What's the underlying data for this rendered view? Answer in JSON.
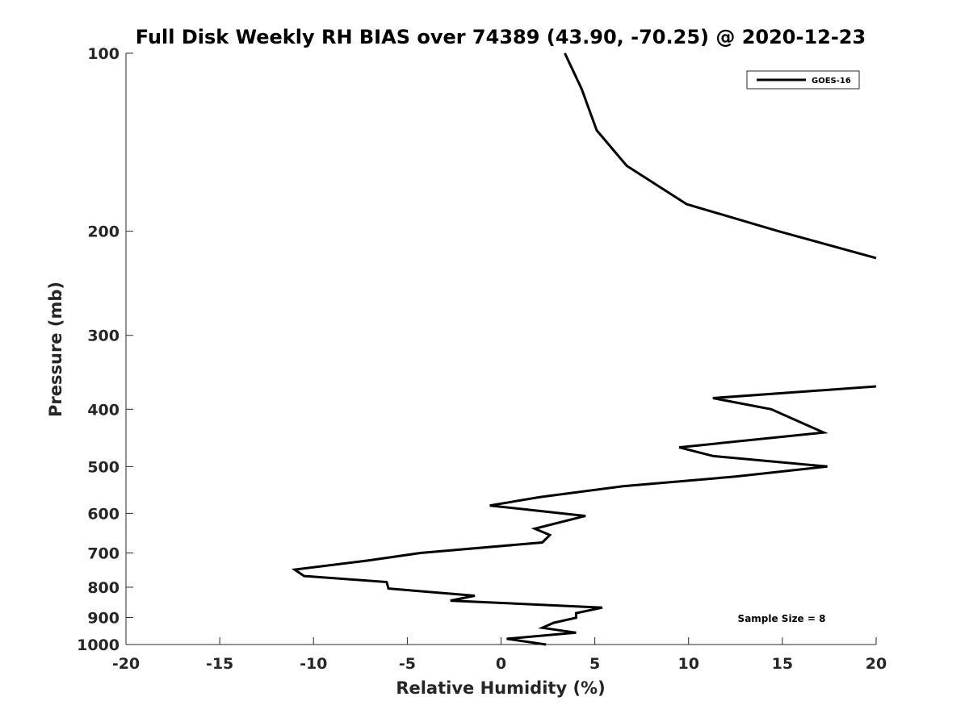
{
  "chart_data": {
    "type": "line",
    "title": "Full Disk Weekly RH BIAS over 74389 (43.90, -70.25) @ 2020-12-23",
    "xlabel": "Relative Humidity (%)",
    "ylabel": "Pressure (mb)",
    "xlim": [
      -20,
      20
    ],
    "ylim": [
      100,
      1000
    ],
    "yscale": "log",
    "y_reversed": true,
    "xticks": [
      -20,
      -15,
      -10,
      -5,
      0,
      5,
      10,
      15,
      20
    ],
    "yticks": [
      100,
      200,
      300,
      400,
      500,
      600,
      700,
      800,
      900,
      1000
    ],
    "grid": false,
    "legend_position": "top-right",
    "annotation": "Sample Size = 8",
    "series": [
      {
        "name": "GOES-16",
        "color": "#000000",
        "segments": [
          [
            {
              "x": 3.4,
              "y": 100
            },
            {
              "x": 4.3,
              "y": 115
            },
            {
              "x": 5.1,
              "y": 135
            },
            {
              "x": 6.7,
              "y": 155
            },
            {
              "x": 9.9,
              "y": 180
            },
            {
              "x": 14.8,
              "y": 200
            },
            {
              "x": 20.0,
              "y": 222
            }
          ],
          [
            {
              "x": 20.0,
              "y": 366
            },
            {
              "x": 11.3,
              "y": 383
            },
            {
              "x": 14.4,
              "y": 400
            },
            {
              "x": 17.2,
              "y": 438
            },
            {
              "x": 9.5,
              "y": 464
            },
            {
              "x": 11.3,
              "y": 480
            },
            {
              "x": 17.4,
              "y": 500
            },
            {
              "x": 12.5,
              "y": 520
            },
            {
              "x": 6.5,
              "y": 540
            },
            {
              "x": 2.1,
              "y": 563
            },
            {
              "x": -0.6,
              "y": 582
            },
            {
              "x": 4.5,
              "y": 606
            },
            {
              "x": 1.8,
              "y": 637
            },
            {
              "x": 2.6,
              "y": 653
            },
            {
              "x": 2.2,
              "y": 672
            },
            {
              "x": -4.3,
              "y": 700
            },
            {
              "x": -7.1,
              "y": 721
            },
            {
              "x": -11.0,
              "y": 747
            },
            {
              "x": -10.5,
              "y": 766
            },
            {
              "x": -6.1,
              "y": 784
            },
            {
              "x": -6.0,
              "y": 804
            },
            {
              "x": -1.4,
              "y": 827
            },
            {
              "x": -2.7,
              "y": 843
            },
            {
              "x": 5.4,
              "y": 866
            },
            {
              "x": 4.0,
              "y": 885
            },
            {
              "x": 4.0,
              "y": 901
            },
            {
              "x": 2.8,
              "y": 919
            },
            {
              "x": 2.2,
              "y": 937
            },
            {
              "x": 4.0,
              "y": 955
            },
            {
              "x": 0.3,
              "y": 978
            },
            {
              "x": 2.4,
              "y": 1000
            }
          ]
        ]
      }
    ]
  }
}
